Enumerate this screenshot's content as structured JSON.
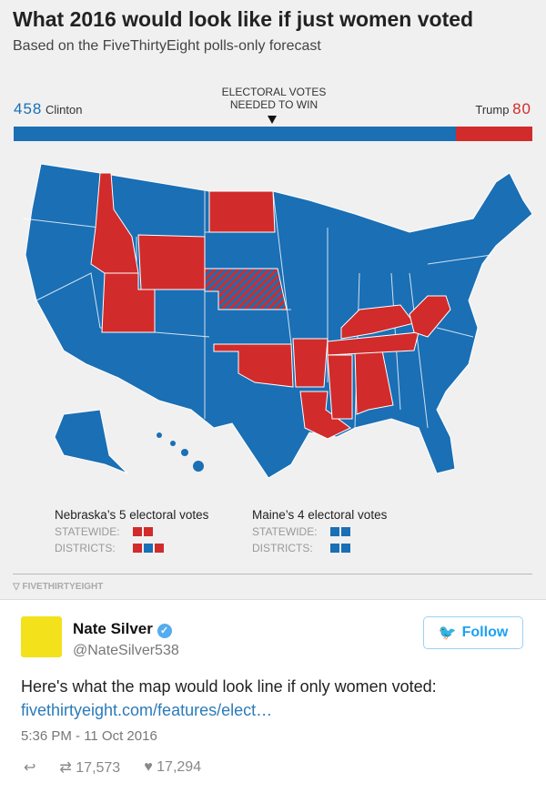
{
  "graphic": {
    "title": "What 2016 would look like if just women voted",
    "subtitle": "Based on the FiveThirtyEight polls-only forecast",
    "needed_label_1": "ELECTORAL VOTES",
    "needed_label_2": "NEEDED TO WIN",
    "clinton": {
      "votes": "458",
      "name": "Clinton",
      "color": "#1a6fb5"
    },
    "trump": {
      "votes": "80",
      "name": "Trump",
      "color": "#d12b2b"
    },
    "nebraska": {
      "title": "Nebraska’s 5 electoral votes",
      "statewide": "STATEWIDE:",
      "districts": "DISTRICTS:",
      "statewide_colors": [
        "red",
        "red"
      ],
      "district_colors": [
        "red",
        "blue",
        "red"
      ]
    },
    "maine": {
      "title": "Maine’s 4 electoral votes",
      "statewide": "STATEWIDE:",
      "districts": "DISTRICTS:",
      "statewide_colors": [
        "blue",
        "blue"
      ],
      "district_colors": [
        "blue",
        "blue"
      ]
    },
    "credit": "FIVETHIRTYEIGHT"
  },
  "tweet": {
    "name": "Nate Silver",
    "handle": "@NateSilver538",
    "follow": "Follow",
    "text": "Here's what the map would look line if only women voted:",
    "link": "fivethirtyeight.com/features/elect…",
    "time": "5:36 PM - 11 Oct 2016",
    "retweets": "17,573",
    "likes": "17,294"
  }
}
